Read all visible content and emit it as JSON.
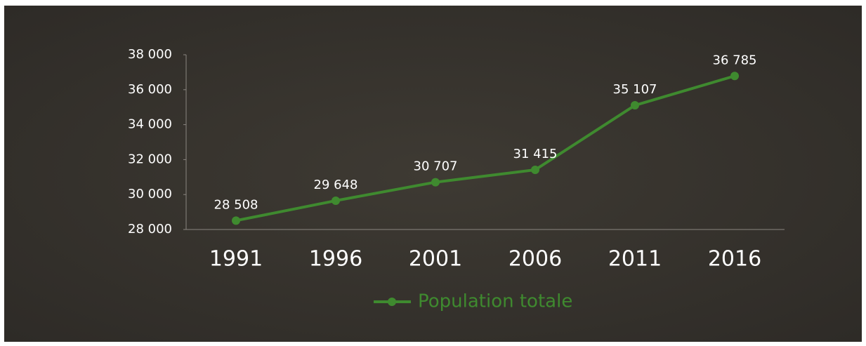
{
  "chart_data": {
    "type": "line",
    "categories": [
      "1991",
      "1996",
      "2001",
      "2006",
      "2011",
      "2016"
    ],
    "series": [
      {
        "name": "Population totale",
        "color": "#3f8a2f",
        "values": [
          28508,
          29648,
          30707,
          31415,
          35107,
          36785
        ],
        "value_labels": [
          "28 508",
          "29 648",
          "30 707",
          "31 415",
          "35 107",
          "36 785"
        ]
      }
    ],
    "ylim": [
      28000,
      38000
    ],
    "yticks": [
      {
        "value": 28000,
        "label": "28 000"
      },
      {
        "value": 30000,
        "label": "30 000"
      },
      {
        "value": 32000,
        "label": "32 000"
      },
      {
        "value": 34000,
        "label": "34 000"
      },
      {
        "value": 36000,
        "label": "36 000"
      },
      {
        "value": 38000,
        "label": "38 000"
      }
    ]
  }
}
